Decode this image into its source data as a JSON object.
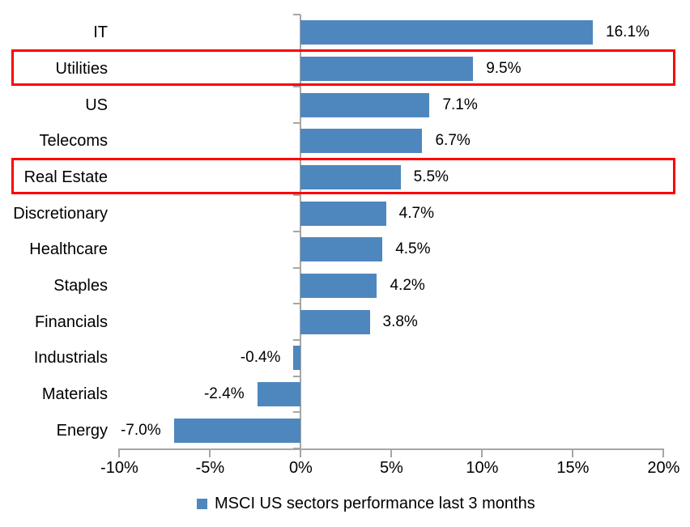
{
  "chart_data": {
    "type": "bar",
    "orientation": "horizontal",
    "categories": [
      "IT",
      "Utilities",
      "US",
      "Telecoms",
      "Real Estate",
      "Discretionary",
      "Healthcare",
      "Staples",
      "Financials",
      "Industrials",
      "Materials",
      "Energy"
    ],
    "values": [
      16.1,
      9.5,
      7.1,
      6.7,
      5.5,
      4.7,
      4.5,
      4.2,
      3.8,
      -0.4,
      -2.4,
      -7.0
    ],
    "data_labels": [
      "16.1%",
      "9.5%",
      "7.1%",
      "6.7%",
      "5.5%",
      "4.7%",
      "4.5%",
      "4.2%",
      "3.8%",
      "-0.4%",
      "-2.4%",
      "-7.0%"
    ],
    "highlighted_categories": [
      "Utilities",
      "Real Estate"
    ],
    "x_axis": {
      "min": -10,
      "max": 20,
      "tick_step": 5,
      "tick_labels": [
        "-10%",
        "-5%",
        "0%",
        "5%",
        "10%",
        "15%",
        "20%"
      ]
    },
    "legend": {
      "label": "MSCI US sectors performance last 3 months",
      "position": "bottom"
    },
    "grid": "off",
    "colors": {
      "bar": "#4E87BD",
      "highlight_box": "#FF0000",
      "axis": "#A6A6A6",
      "text": "#000000"
    }
  }
}
